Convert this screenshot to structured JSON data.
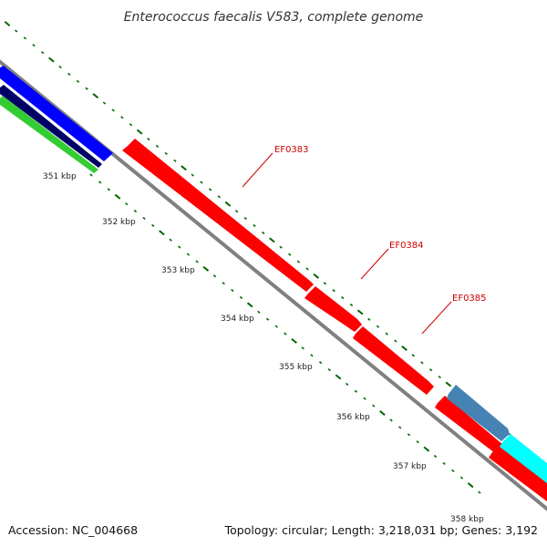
{
  "title": "Enterococcus faecalis V583, complete genome",
  "footer": {
    "accession": "Accession: NC_004668",
    "summary": "Topology: circular; Length: 3,218,031 bp; Genes: 3,192"
  },
  "ticks": [
    {
      "label": "351 kbp",
      "kbp": 351
    },
    {
      "label": "352 kbp",
      "kbp": 352
    },
    {
      "label": "353 kbp",
      "kbp": 353
    },
    {
      "label": "354 kbp",
      "kbp": 354
    },
    {
      "label": "355 kbp",
      "kbp": 355
    },
    {
      "label": "356 kbp",
      "kbp": 356
    },
    {
      "label": "357 kbp",
      "kbp": 357
    },
    {
      "label": "358 kbp",
      "kbp": 358
    }
  ],
  "gene_labels": [
    {
      "name": "EF0383"
    },
    {
      "name": "EF0384"
    },
    {
      "name": "EF0385"
    }
  ],
  "colors": {
    "backbone": "#808080",
    "cds_forward_red": "#ff0000",
    "cds_blue": "#0000ff",
    "cds_navy": "#000066",
    "cds_green": "#33cc33",
    "cds_steelblue": "#4682b4",
    "cds_cyan": "#00ffff",
    "tick": "#006600",
    "gene_label": "#cc0000"
  }
}
